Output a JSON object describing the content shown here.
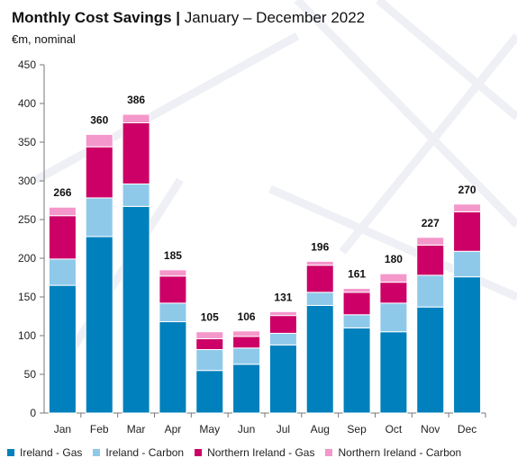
{
  "title": {
    "bold": "Monthly Cost Savings |",
    "rest": "January – December 2022"
  },
  "subtitle": "€m, nominal",
  "colors": {
    "ireland_gas": "#0080BC",
    "ireland_carbon": "#8FC9EA",
    "ni_gas": "#CC0066",
    "ni_carbon": "#F497CB"
  },
  "legend": [
    {
      "name": "Ireland - Gas",
      "color": "#0080BC"
    },
    {
      "name": "Ireland - Carbon",
      "color": "#8FC9EA"
    },
    {
      "name": "Northern Ireland - Gas",
      "color": "#CC0066"
    },
    {
      "name": "Northern Ireland - Carbon",
      "color": "#F497CB"
    }
  ],
  "chart_data": {
    "type": "bar",
    "stacked": true,
    "categories": [
      "Jan",
      "Feb",
      "Mar",
      "Apr",
      "May",
      "Jun",
      "Jul",
      "Aug",
      "Sep",
      "Oct",
      "Nov",
      "Dec"
    ],
    "series": [
      {
        "name": "Ireland - Gas",
        "values": [
          165,
          228,
          267,
          118,
          55,
          63,
          88,
          139,
          110,
          105,
          137,
          176
        ]
      },
      {
        "name": "Ireland - Carbon",
        "values": [
          34,
          50,
          29,
          24,
          27,
          21,
          15,
          17,
          17,
          37,
          41,
          33
        ]
      },
      {
        "name": "Northern Ireland - Gas",
        "values": [
          56,
          66,
          79,
          35,
          14,
          15,
          23,
          35,
          29,
          27,
          39,
          51
        ]
      },
      {
        "name": "Northern Ireland - Carbon",
        "values": [
          11,
          16,
          11,
          8,
          9,
          7,
          5,
          5,
          5,
          11,
          10,
          10
        ]
      }
    ],
    "totals": [
      266,
      360,
      386,
      185,
      105,
      106,
      131,
      196,
      161,
      180,
      227,
      270
    ],
    "ylim": [
      0,
      450
    ],
    "yticks": [
      0,
      50,
      100,
      150,
      200,
      250,
      300,
      350,
      400,
      450
    ],
    "grid": false,
    "legend_position": "bottom"
  }
}
